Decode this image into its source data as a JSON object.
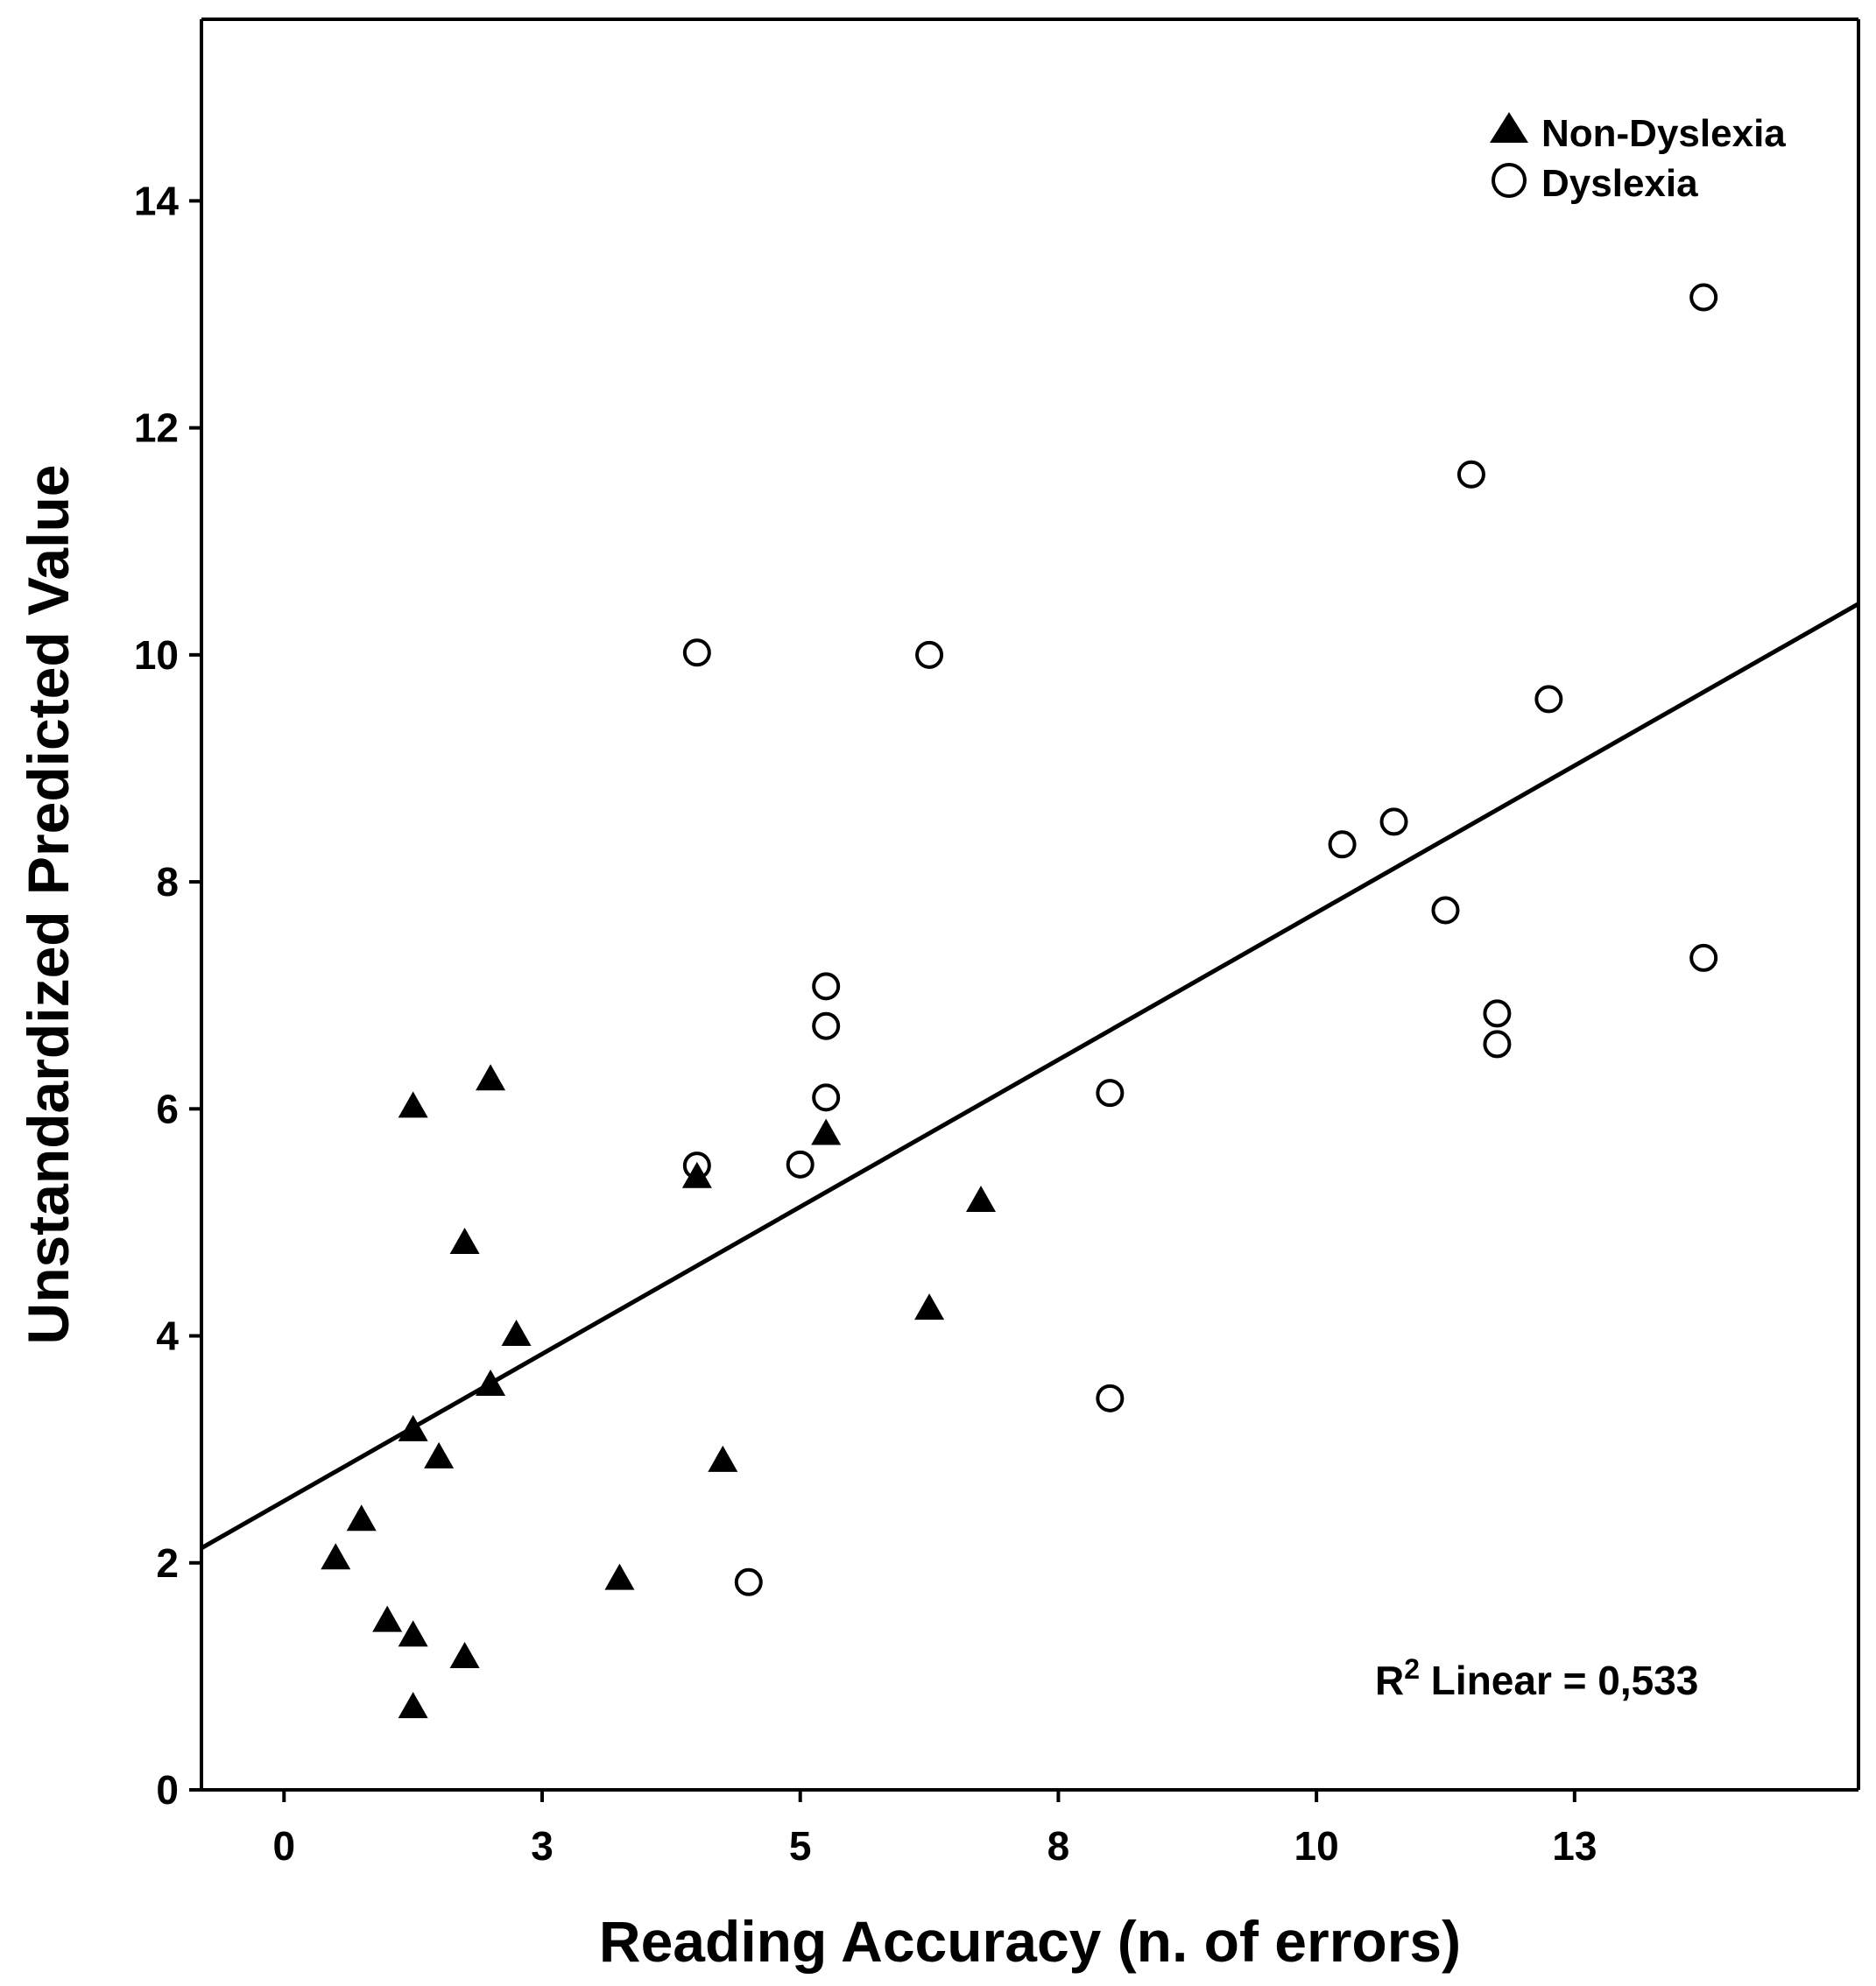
{
  "chart_data": {
    "type": "scatter",
    "title": "",
    "xlabel": "Reading Accuracy (n. of errors)",
    "ylabel": "Unstandardized Predicted Value",
    "xlim": [
      -1.6,
      30.5
    ],
    "ylim": [
      0,
      15.6
    ],
    "x_ticks": [
      0,
      5,
      10,
      15,
      20,
      25
    ],
    "x_tick_labels": [
      "0",
      "3",
      "5",
      "8",
      "10",
      "13"
    ],
    "y_ticks": [
      0,
      2,
      4,
      6,
      8,
      10,
      12,
      14
    ],
    "y_tick_labels": [
      "0",
      "2",
      "4",
      "6",
      "8",
      "10",
      "12",
      "14"
    ],
    "grid": false,
    "legend": {
      "position": "top-right",
      "entries": [
        {
          "label": "Non-Dyslexia",
          "marker": "filled-triangle"
        },
        {
          "label": "Dyslexia",
          "marker": "open-circle"
        }
      ]
    },
    "fit_line": {
      "type": "linear",
      "x": [
        -1.6,
        30.5
      ],
      "y": [
        2.13,
        10.45
      ],
      "label_prefix": "R",
      "label_sup": "2",
      "label_suffix": " Linear = 0,533"
    },
    "colors": {
      "axis": "#000000",
      "marker": "#000000",
      "background": "#ffffff"
    },
    "series": [
      {
        "name": "Non-Dyslexia",
        "marker": "triangle",
        "points": [
          {
            "x": 1.0,
            "y": 2.05
          },
          {
            "x": 1.5,
            "y": 2.39
          },
          {
            "x": 2.0,
            "y": 1.5
          },
          {
            "x": 2.5,
            "y": 1.37
          },
          {
            "x": 2.5,
            "y": 0.74
          },
          {
            "x": 2.5,
            "y": 3.18
          },
          {
            "x": 2.5,
            "y": 6.03
          },
          {
            "x": 3.0,
            "y": 2.94
          },
          {
            "x": 3.5,
            "y": 1.18
          },
          {
            "x": 3.5,
            "y": 4.83
          },
          {
            "x": 4.0,
            "y": 3.58
          },
          {
            "x": 4.0,
            "y": 6.27
          },
          {
            "x": 4.5,
            "y": 4.02
          },
          {
            "x": 6.5,
            "y": 1.87
          },
          {
            "x": 8.0,
            "y": 5.41
          },
          {
            "x": 8.5,
            "y": 2.91
          },
          {
            "x": 10.5,
            "y": 5.79
          },
          {
            "x": 12.5,
            "y": 4.25
          },
          {
            "x": 13.5,
            "y": 5.2
          }
        ]
      },
      {
        "name": "Dyslexia",
        "marker": "circle",
        "points": [
          {
            "x": 8.0,
            "y": 10.02
          },
          {
            "x": 8.0,
            "y": 5.5
          },
          {
            "x": 9.0,
            "y": 1.83
          },
          {
            "x": 10.0,
            "y": 5.51
          },
          {
            "x": 10.5,
            "y": 7.08
          },
          {
            "x": 10.5,
            "y": 6.73
          },
          {
            "x": 10.5,
            "y": 6.1
          },
          {
            "x": 12.5,
            "y": 10.0
          },
          {
            "x": 16.0,
            "y": 6.14
          },
          {
            "x": 16.0,
            "y": 3.45
          },
          {
            "x": 20.5,
            "y": 8.33
          },
          {
            "x": 21.5,
            "y": 8.53
          },
          {
            "x": 22.5,
            "y": 7.75
          },
          {
            "x": 23.0,
            "y": 11.59
          },
          {
            "x": 23.5,
            "y": 6.84
          },
          {
            "x": 23.5,
            "y": 6.57
          },
          {
            "x": 24.5,
            "y": 9.61
          },
          {
            "x": 27.5,
            "y": 13.15
          },
          {
            "x": 27.5,
            "y": 7.33
          }
        ]
      }
    ]
  }
}
